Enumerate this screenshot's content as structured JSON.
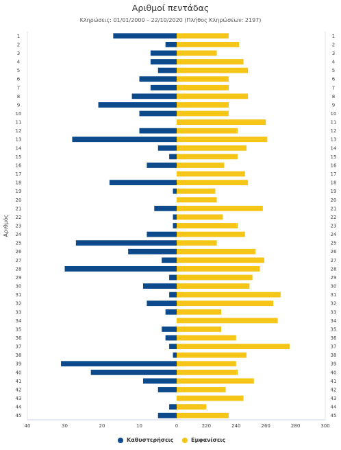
{
  "chart_data": {
    "type": "bar",
    "title": "Αριθμοί πεντάδας",
    "subtitle": "Κληρώσεις: 01/01/2000 – 22/10/2020 (Πλήθος Κληρώσεων: 2197)",
    "ylabel": "Αριθμός",
    "categories": [
      "1",
      "2",
      "3",
      "4",
      "5",
      "6",
      "7",
      "8",
      "9",
      "10",
      "11",
      "12",
      "13",
      "14",
      "15",
      "16",
      "17",
      "18",
      "19",
      "20",
      "21",
      "22",
      "23",
      "24",
      "25",
      "26",
      "27",
      "28",
      "29",
      "30",
      "31",
      "32",
      "33",
      "34",
      "35",
      "36",
      "37",
      "38",
      "39",
      "40",
      "41",
      "42",
      "43",
      "44",
      "45"
    ],
    "series": [
      {
        "name": "Καθυστερήσεις",
        "color": "#0d4a8c",
        "direction": "left",
        "xlim": [
          0,
          40
        ],
        "ticks": [
          40,
          30,
          20,
          10,
          0
        ],
        "values": [
          17,
          3,
          7,
          7,
          5,
          10,
          7,
          12,
          21,
          10,
          0,
          10,
          28,
          5,
          2,
          8,
          0,
          18,
          1,
          0,
          6,
          1,
          1,
          8,
          27,
          13,
          4,
          30,
          2,
          9,
          2,
          8,
          3,
          0,
          4,
          3,
          2,
          1,
          31,
          23,
          9,
          5,
          0,
          2,
          5
        ]
      },
      {
        "name": "Εμφανίσεις",
        "color": "#f5c518",
        "direction": "right",
        "xlim": [
          0,
          300
        ],
        "ticks": [
          0,
          220,
          240,
          260,
          280,
          300
        ],
        "values": [
          235,
          242,
          227,
          245,
          248,
          235,
          235,
          248,
          235,
          235,
          260,
          241,
          261,
          247,
          241,
          232,
          246,
          248,
          226,
          227,
          258,
          231,
          241,
          246,
          227,
          253,
          259,
          256,
          251,
          249,
          270,
          265,
          230,
          268,
          230,
          240,
          276,
          247,
          240,
          241,
          252,
          233,
          245,
          220,
          235
        ]
      }
    ]
  }
}
